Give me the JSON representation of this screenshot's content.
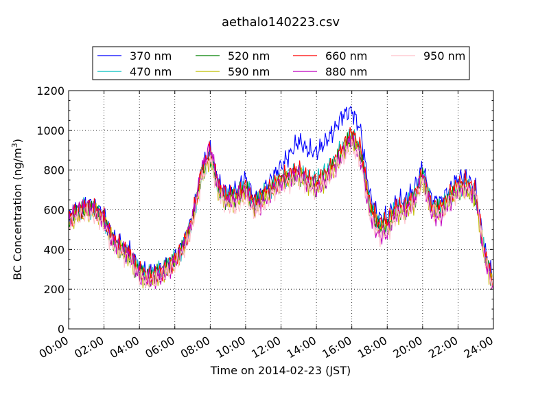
{
  "chart_data": {
    "type": "line",
    "title": "aethalo140223.csv",
    "xlabel": "Time on 2014-02-23 (JST)",
    "ylabel": "BC Concentration (ng/m³)",
    "ylabel_main": "BC Concentration (ng/m",
    "ylabel_sup": "3",
    "ylabel_tail": ")",
    "xlim": [
      "00:00",
      "24:00"
    ],
    "ylim": [
      0,
      1200
    ],
    "x_ticks": [
      "00:00",
      "02:00",
      "04:00",
      "06:00",
      "08:00",
      "10:00",
      "12:00",
      "14:00",
      "16:00",
      "18:00",
      "20:00",
      "22:00",
      "24:00"
    ],
    "y_ticks": [
      0,
      200,
      400,
      600,
      800,
      1000,
      1200
    ],
    "grid": true,
    "legend_placement": "top, above plot (4 columns)",
    "x": [
      "00:00",
      "00:30",
      "01:00",
      "01:30",
      "02:00",
      "02:30",
      "03:00",
      "03:30",
      "04:00",
      "04:30",
      "05:00",
      "05:30",
      "06:00",
      "06:30",
      "07:00",
      "07:30",
      "08:00",
      "08:30",
      "09:00",
      "09:30",
      "10:00",
      "10:30",
      "11:00",
      "11:30",
      "12:00",
      "12:30",
      "13:00",
      "13:30",
      "14:00",
      "14:30",
      "15:00",
      "15:30",
      "16:00",
      "16:30",
      "17:00",
      "17:30",
      "18:00",
      "18:30",
      "19:00",
      "19:30",
      "20:00",
      "20:30",
      "21:00",
      "21:30",
      "22:00",
      "22:30",
      "23:00",
      "23:30",
      "24:00"
    ],
    "series": [
      {
        "name": "370 nm",
        "color": "#0000ff",
        "values": [
          560,
          600,
          630,
          620,
          570,
          460,
          420,
          380,
          300,
          280,
          290,
          320,
          360,
          430,
          560,
          800,
          900,
          720,
          680,
          700,
          760,
          650,
          700,
          760,
          820,
          880,
          950,
          900,
          890,
          940,
          1000,
          1080,
          1100,
          1000,
          680,
          560,
          560,
          640,
          650,
          700,
          820,
          650,
          640,
          700,
          760,
          760,
          700,
          400,
          240
        ]
      },
      {
        "name": "470 nm",
        "color": "#00bfbf",
        "values": [
          550,
          590,
          610,
          600,
          560,
          450,
          410,
          370,
          290,
          270,
          280,
          310,
          350,
          420,
          550,
          780,
          880,
          700,
          660,
          680,
          720,
          630,
          680,
          720,
          760,
          780,
          800,
          760,
          750,
          790,
          840,
          920,
          980,
          900,
          640,
          540,
          540,
          610,
          620,
          660,
          780,
          620,
          610,
          670,
          720,
          730,
          680,
          380,
          230
        ]
      },
      {
        "name": "520 nm",
        "color": "#008000",
        "values": [
          540,
          580,
          600,
          590,
          550,
          440,
          400,
          360,
          280,
          260,
          270,
          300,
          340,
          410,
          540,
          770,
          870,
          690,
          650,
          660,
          700,
          620,
          660,
          700,
          740,
          760,
          780,
          740,
          720,
          760,
          820,
          900,
          960,
          880,
          620,
          520,
          520,
          590,
          600,
          640,
          760,
          600,
          590,
          650,
          700,
          710,
          660,
          370,
          220
        ]
      },
      {
        "name": "590 nm",
        "color": "#bfbf00",
        "values": [
          530,
          570,
          590,
          580,
          540,
          430,
          390,
          350,
          270,
          250,
          260,
          290,
          330,
          400,
          530,
          760,
          860,
          680,
          640,
          650,
          690,
          610,
          650,
          690,
          730,
          750,
          770,
          730,
          710,
          750,
          810,
          890,
          950,
          870,
          610,
          500,
          510,
          580,
          590,
          630,
          750,
          590,
          580,
          640,
          690,
          700,
          650,
          360,
          210
        ]
      },
      {
        "name": "660 nm",
        "color": "#ff0000",
        "values": [
          560,
          600,
          620,
          610,
          560,
          450,
          410,
          370,
          290,
          270,
          280,
          310,
          350,
          420,
          560,
          790,
          900,
          710,
          670,
          680,
          720,
          640,
          680,
          720,
          760,
          780,
          800,
          760,
          740,
          780,
          840,
          920,
          990,
          910,
          640,
          530,
          540,
          610,
          620,
          660,
          790,
          620,
          610,
          670,
          730,
          740,
          690,
          380,
          220
        ]
      },
      {
        "name": "880 nm",
        "color": "#bf00bf",
        "values": [
          550,
          600,
          620,
          600,
          550,
          440,
          400,
          360,
          260,
          240,
          250,
          280,
          340,
          420,
          560,
          800,
          920,
          700,
          640,
          650,
          700,
          600,
          640,
          700,
          740,
          760,
          780,
          730,
          700,
          740,
          800,
          880,
          960,
          860,
          580,
          470,
          480,
          580,
          590,
          630,
          770,
          580,
          560,
          640,
          700,
          710,
          660,
          360,
          200
        ]
      },
      {
        "name": "950 nm",
        "color": "#ffc0cb",
        "values": [
          520,
          560,
          580,
          570,
          520,
          420,
          380,
          340,
          260,
          240,
          250,
          280,
          320,
          390,
          520,
          750,
          860,
          670,
          620,
          610,
          660,
          580,
          620,
          680,
          720,
          740,
          760,
          720,
          700,
          740,
          790,
          860,
          920,
          840,
          580,
          470,
          480,
          570,
          580,
          620,
          740,
          580,
          570,
          630,
          690,
          700,
          700,
          360,
          200
        ]
      }
    ]
  }
}
